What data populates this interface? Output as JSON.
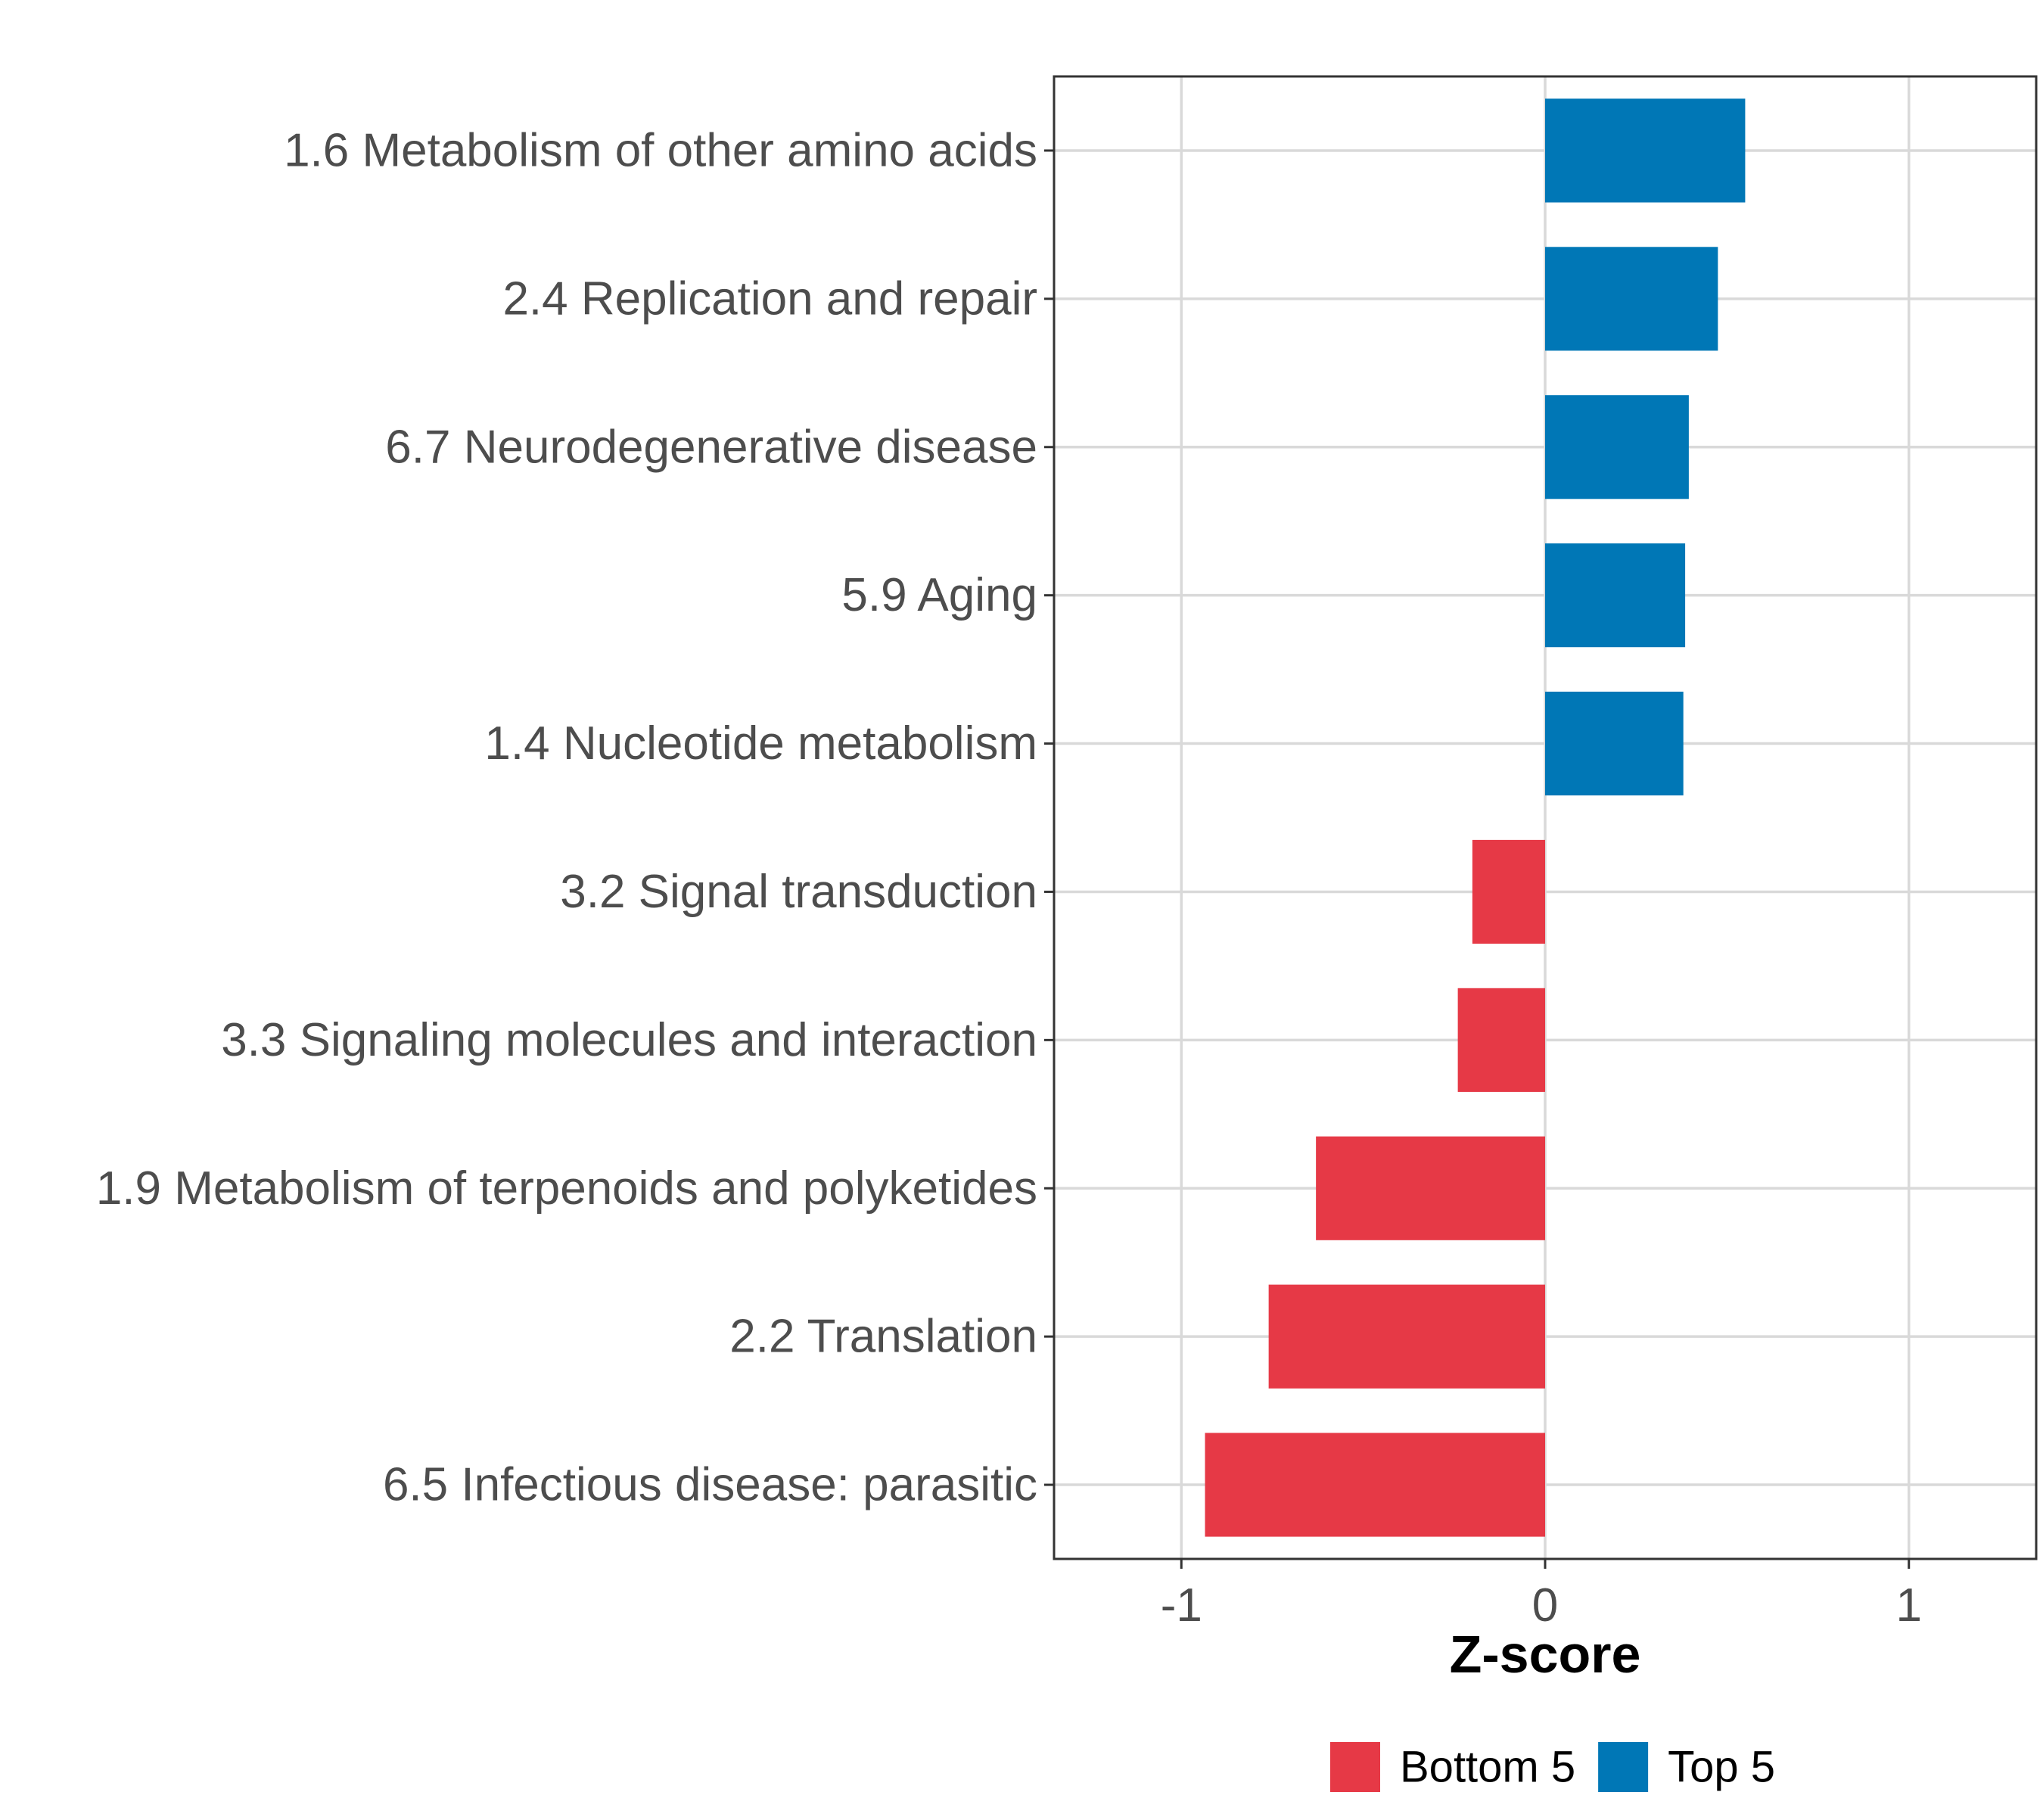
{
  "chart_data": {
    "type": "bar",
    "orientation": "horizontal",
    "categories": [
      "1.6 Metabolism of other amino acids",
      "2.4 Replication and repair",
      "6.7 Neurodegenerative disease",
      "5.9 Aging",
      "1.4 Nucleotide metabolism",
      "3.2 Signal transduction",
      "3.3 Signaling molecules and interaction",
      "1.9 Metabolism of terpenoids and polyketides",
      "2.2 Translation",
      "6.5 Infectious disease: parasitic"
    ],
    "values": [
      0.55,
      0.475,
      0.395,
      0.385,
      0.38,
      -0.2,
      -0.24,
      -0.63,
      -0.76,
      -0.935
    ],
    "groups": [
      "Top 5",
      "Top 5",
      "Top 5",
      "Top 5",
      "Top 5",
      "Bottom 5",
      "Bottom 5",
      "Bottom 5",
      "Bottom 5",
      "Bottom 5"
    ],
    "title": "",
    "xlabel": "Z-score",
    "ylabel": "",
    "xlim": [
      -1.35,
      1.35
    ],
    "xticks": [
      -1,
      0,
      1
    ],
    "xtick_labels": [
      "-1",
      "0",
      "1"
    ],
    "grid": true,
    "legend": {
      "position": "bottom",
      "entries": [
        {
          "label": "Bottom 5",
          "color": "#e63946"
        },
        {
          "label": "Top 5",
          "color": "#0077b6"
        }
      ]
    },
    "colors": {
      "Top 5": "#0077b6",
      "Bottom 5": "#e63946"
    }
  }
}
